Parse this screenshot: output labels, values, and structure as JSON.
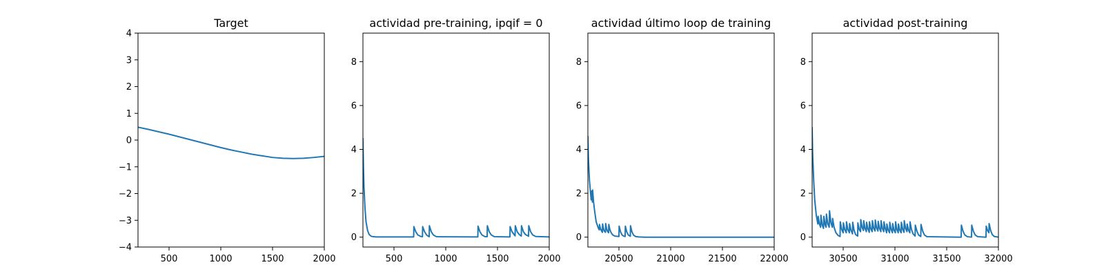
{
  "figure": {
    "background": "#ffffff",
    "line_color": "#1f77b4"
  },
  "chart_data": [
    {
      "type": "line",
      "title": "Target",
      "xlim": [
        200,
        2000
      ],
      "ylim": [
        -4,
        4
      ],
      "xticks": [
        500,
        1000,
        1500,
        2000
      ],
      "yticks": [
        -4,
        -3,
        -2,
        -1,
        0,
        1,
        2,
        3,
        4
      ],
      "series": [
        {
          "x": [
            200,
            300,
            400,
            500,
            600,
            700,
            800,
            900,
            1000,
            1100,
            1200,
            1300,
            1400,
            1500,
            1600,
            1700,
            1800,
            1900,
            2000
          ],
          "y": [
            0.48,
            0.4,
            0.31,
            0.22,
            0.12,
            0.02,
            -0.08,
            -0.18,
            -0.28,
            -0.37,
            -0.45,
            -0.53,
            -0.59,
            -0.65,
            -0.68,
            -0.69,
            -0.68,
            -0.65,
            -0.61
          ]
        }
      ]
    },
    {
      "type": "line",
      "title": "actividad pre-training, ipqif = 0",
      "xlim": [
        200,
        2000
      ],
      "ylim": [
        -0.45,
        9.3
      ],
      "xticks": [
        500,
        1000,
        1500,
        2000
      ],
      "yticks": [
        0,
        2,
        4,
        6,
        8
      ],
      "series": [
        {
          "x": [
            200,
            205,
            210,
            220,
            230,
            245,
            260,
            280,
            300,
            330,
            690,
            692,
            710,
            730,
            760,
            775,
            777,
            795,
            815,
            835,
            840,
            842,
            860,
            880,
            910,
            1310,
            1312,
            1330,
            1350,
            1380,
            1400,
            1402,
            1420,
            1440,
            1470,
            1620,
            1622,
            1640,
            1660,
            1670,
            1672,
            1690,
            1710,
            1730,
            1732,
            1750,
            1770,
            1800,
            1802,
            1820,
            1840,
            1870,
            2000
          ],
          "y": [
            4.5,
            3.2,
            2.3,
            1.3,
            0.7,
            0.3,
            0.12,
            0.04,
            0.02,
            0.01,
            0.01,
            0.48,
            0.25,
            0.1,
            0.03,
            0.02,
            0.48,
            0.25,
            0.1,
            0.03,
            0.02,
            0.52,
            0.25,
            0.1,
            0.02,
            0.01,
            0.5,
            0.25,
            0.1,
            0.02,
            0.02,
            0.52,
            0.25,
            0.1,
            0.02,
            0.01,
            0.48,
            0.25,
            0.12,
            0.06,
            0.52,
            0.25,
            0.12,
            0.05,
            0.52,
            0.25,
            0.12,
            0.04,
            0.52,
            0.25,
            0.1,
            0.03,
            0.01
          ]
        }
      ]
    },
    {
      "type": "line",
      "title": "actividad último loop de training",
      "xlim": [
        20200,
        22000
      ],
      "ylim": [
        -0.45,
        9.3
      ],
      "xticks": [
        20500,
        21000,
        21500,
        22000
      ],
      "yticks": [
        0,
        2,
        4,
        6,
        8
      ],
      "series": [
        {
          "x": [
            20200,
            20205,
            20215,
            20225,
            20232,
            20234,
            20240,
            20244,
            20246,
            20255,
            20265,
            20280,
            20300,
            20310,
            20312,
            20320,
            20328,
            20340,
            20342,
            20350,
            20358,
            20370,
            20372,
            20380,
            20388,
            20400,
            20402,
            20412,
            20425,
            20440,
            20460,
            20500,
            20502,
            20515,
            20530,
            20545,
            20560,
            20562,
            20575,
            20590,
            20610,
            20612,
            20625,
            20640,
            20660,
            20690,
            20750,
            22000
          ],
          "y": [
            4.6,
            3.6,
            2.6,
            2.05,
            1.7,
            2.1,
            1.9,
            1.6,
            2.15,
            1.6,
            1.2,
            0.7,
            0.42,
            0.33,
            0.58,
            0.42,
            0.32,
            0.22,
            0.6,
            0.4,
            0.28,
            0.22,
            0.62,
            0.4,
            0.28,
            0.2,
            0.58,
            0.35,
            0.2,
            0.1,
            0.05,
            0.03,
            0.5,
            0.25,
            0.1,
            0.05,
            0.03,
            0.5,
            0.25,
            0.1,
            0.04,
            0.52,
            0.25,
            0.1,
            0.03,
            0.01,
            0.0,
            0.0
          ]
        }
      ]
    },
    {
      "type": "line",
      "title": "actividad post-training",
      "xlim": [
        30200,
        32000
      ],
      "ylim": [
        -0.45,
        9.3
      ],
      "xticks": [
        30500,
        31000,
        31500,
        32000
      ],
      "yticks": [
        0,
        2,
        4,
        6,
        8
      ],
      "series": [
        {
          "x": [
            30200,
            30205,
            30215,
            30225,
            30240,
            30255,
            30258,
            30270,
            30282,
            30285,
            30298,
            30310,
            30313,
            30326,
            30335,
            30338,
            30352,
            30365,
            30368,
            30382,
            30395,
            30398,
            30412,
            30430,
            30450,
            30470,
            30472,
            30486,
            30500,
            30502,
            30515,
            30530,
            30532,
            30545,
            30560,
            30562,
            30575,
            30590,
            30592,
            30605,
            30620,
            30640,
            30642,
            30655,
            30668,
            30670,
            30683,
            30696,
            30698,
            30711,
            30724,
            30726,
            30739,
            30752,
            30754,
            30767,
            30780,
            30782,
            30795,
            30808,
            30810,
            30823,
            30836,
            30838,
            30851,
            30864,
            30866,
            30879,
            30892,
            30894,
            30907,
            30920,
            30922,
            30935,
            30948,
            30950,
            30963,
            30976,
            30978,
            30991,
            31004,
            31006,
            31019,
            31032,
            31034,
            31047,
            31060,
            31062,
            31075,
            31088,
            31090,
            31103,
            31116,
            31118,
            31131,
            31144,
            31146,
            31160,
            31175,
            31195,
            31197,
            31212,
            31228,
            31250,
            31252,
            31268,
            31285,
            31310,
            31640,
            31642,
            31658,
            31675,
            31700,
            31740,
            31742,
            31758,
            31775,
            31800,
            31880,
            31882,
            31895,
            31908,
            31910,
            31925,
            31940,
            31960,
            32000
          ],
          "y": [
            5.0,
            3.8,
            2.6,
            1.7,
            1.0,
            0.6,
            0.95,
            0.6,
            0.45,
            1.0,
            0.55,
            0.4,
            0.95,
            0.55,
            0.45,
            1.05,
            0.6,
            0.45,
            1.2,
            0.65,
            0.45,
            0.85,
            0.45,
            0.2,
            0.08,
            0.03,
            0.7,
            0.35,
            0.2,
            0.65,
            0.35,
            0.2,
            0.7,
            0.35,
            0.2,
            0.62,
            0.32,
            0.15,
            0.68,
            0.32,
            0.12,
            0.05,
            0.65,
            0.35,
            0.25,
            0.8,
            0.45,
            0.3,
            0.75,
            0.4,
            0.25,
            0.68,
            0.38,
            0.22,
            0.7,
            0.38,
            0.25,
            0.75,
            0.4,
            0.28,
            0.78,
            0.42,
            0.28,
            0.72,
            0.4,
            0.25,
            0.75,
            0.4,
            0.25,
            0.7,
            0.38,
            0.2,
            0.6,
            0.32,
            0.2,
            0.68,
            0.35,
            0.2,
            0.62,
            0.32,
            0.2,
            0.7,
            0.35,
            0.2,
            0.6,
            0.32,
            0.2,
            0.68,
            0.35,
            0.22,
            0.75,
            0.4,
            0.25,
            0.6,
            0.32,
            0.2,
            0.7,
            0.35,
            0.15,
            0.05,
            0.55,
            0.28,
            0.1,
            0.03,
            0.58,
            0.28,
            0.1,
            0.02,
            0.0,
            0.55,
            0.27,
            0.1,
            0.02,
            0.0,
            0.55,
            0.27,
            0.1,
            0.02,
            0.0,
            0.5,
            0.3,
            0.2,
            0.62,
            0.3,
            0.12,
            0.03,
            0.0
          ]
        }
      ]
    }
  ]
}
